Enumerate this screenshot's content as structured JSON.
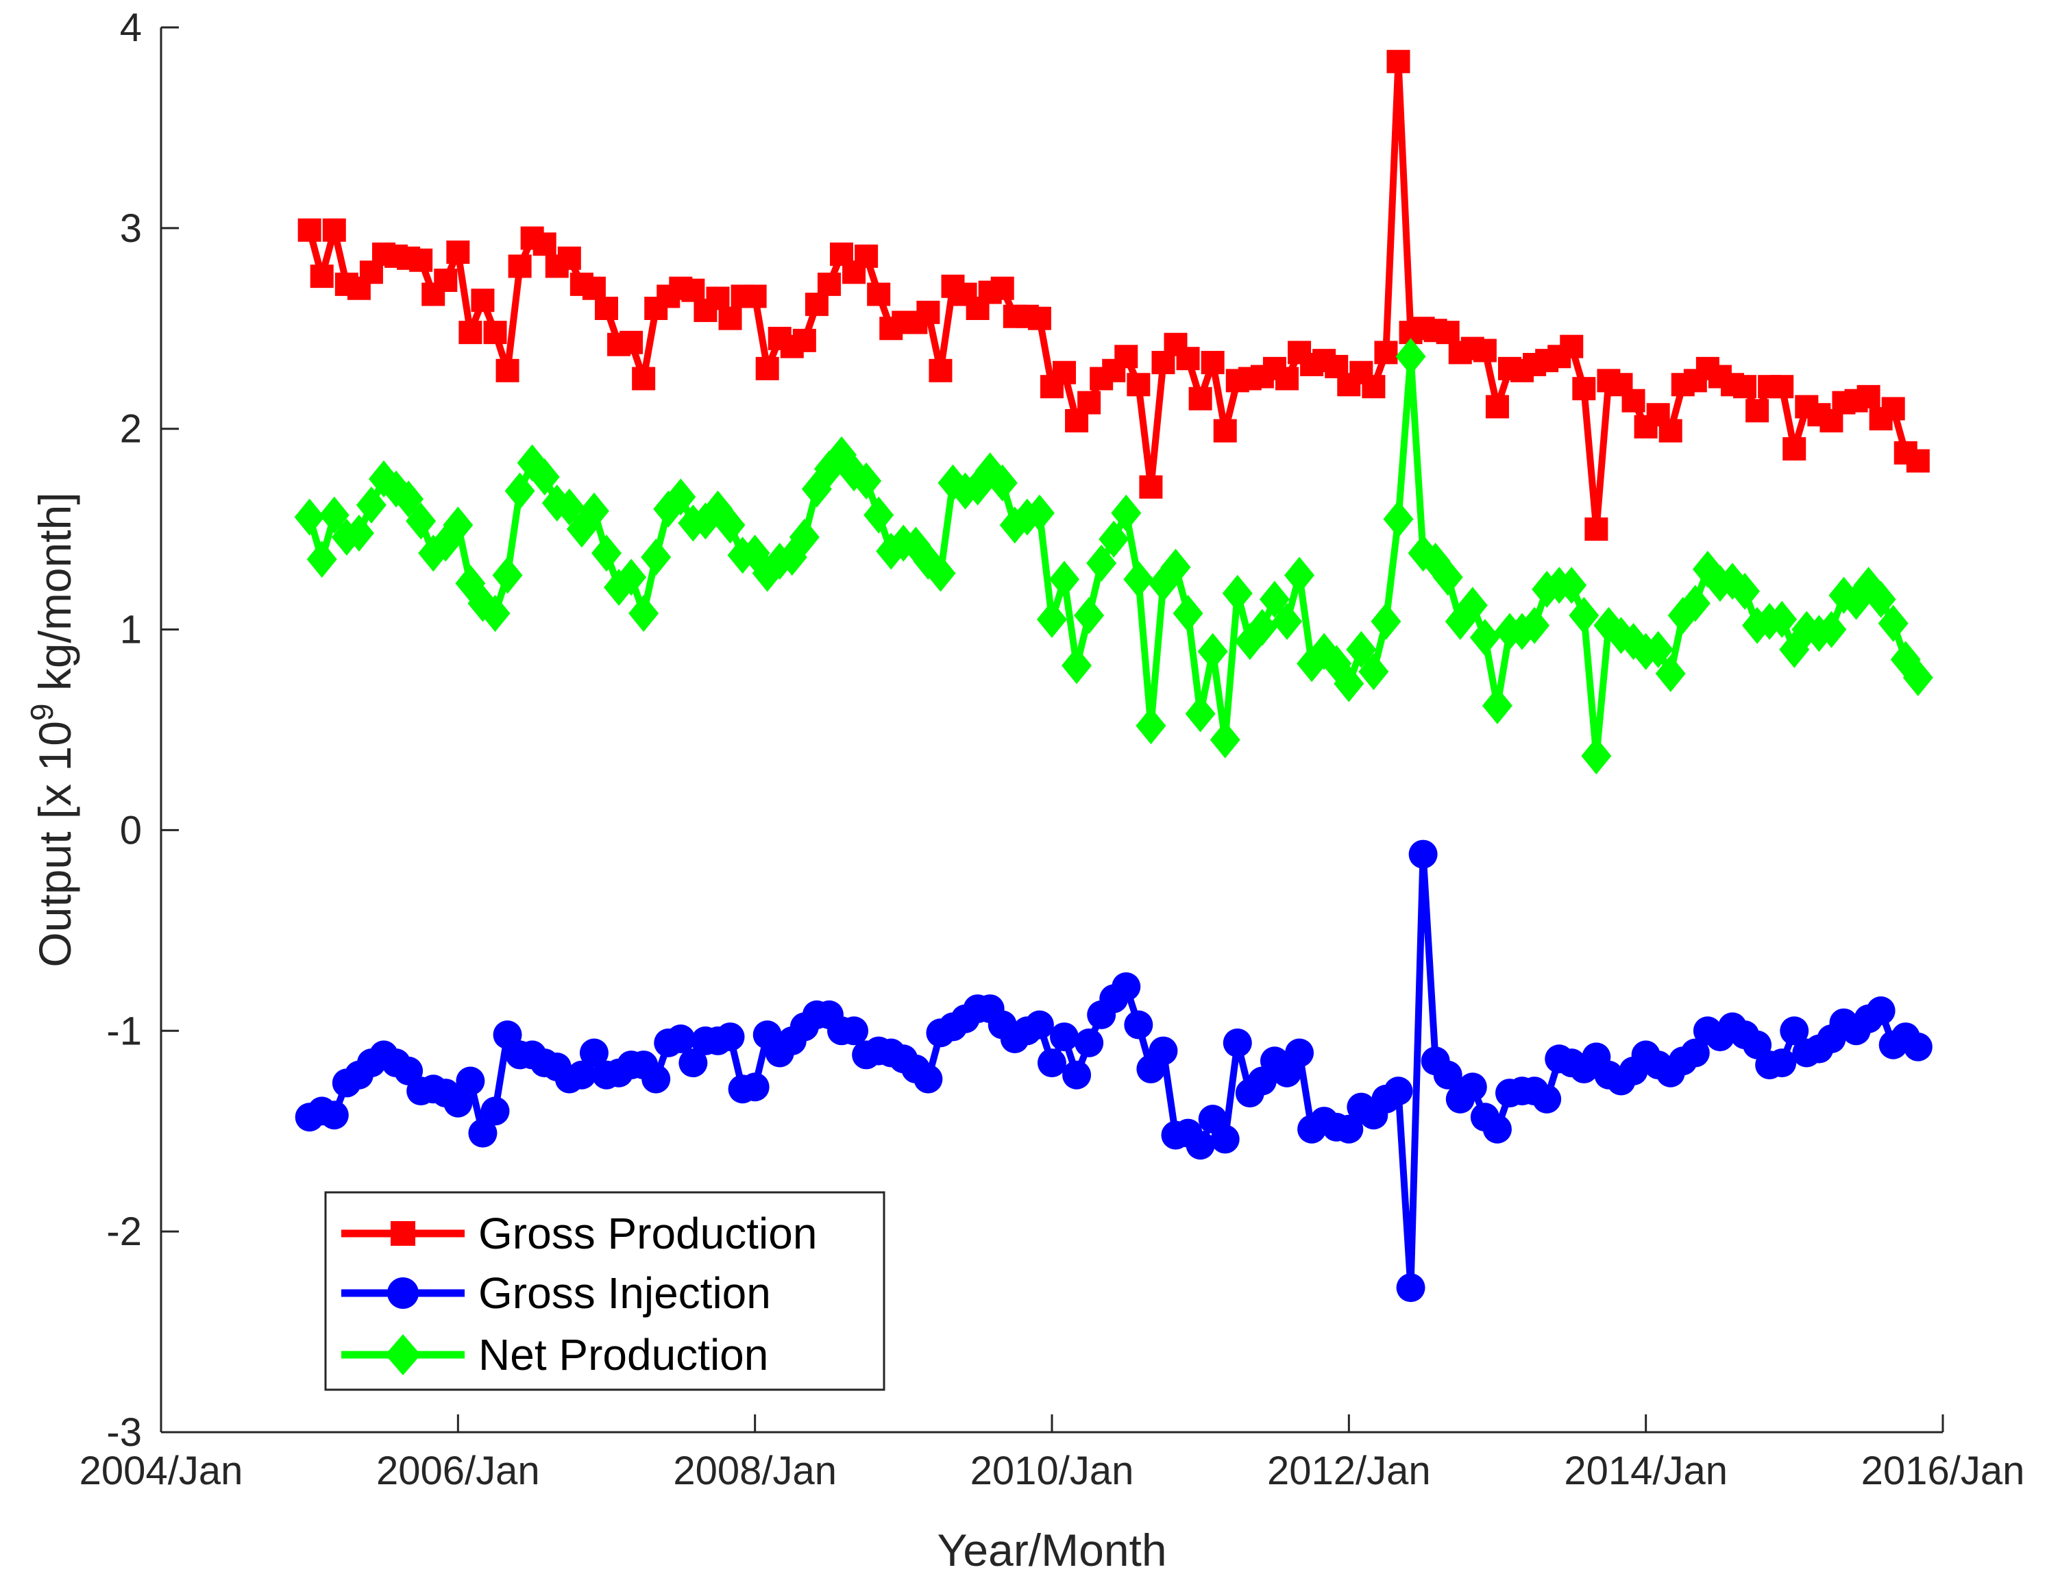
{
  "chart_data": {
    "type": "line",
    "title": "",
    "xlabel": "Year/Month",
    "ylabel_parts": {
      "prefix": "Output [x 10",
      "exponent": "9",
      "suffix": " kg/month]"
    },
    "xlim": [
      2004.0,
      2016.0
    ],
    "ylim": [
      -3,
      4
    ],
    "x_ticks": [
      {
        "value": 2004,
        "label": "2004/Jan"
      },
      {
        "value": 2006,
        "label": "2006/Jan"
      },
      {
        "value": 2008,
        "label": "2008/Jan"
      },
      {
        "value": 2010,
        "label": "2010/Jan"
      },
      {
        "value": 2012,
        "label": "2012/Jan"
      },
      {
        "value": 2014,
        "label": "2014/Jan"
      },
      {
        "value": 2016,
        "label": "2016/Jan"
      }
    ],
    "y_ticks": [
      {
        "value": -3,
        "label": "-3"
      },
      {
        "value": -2,
        "label": "-2"
      },
      {
        "value": -1,
        "label": "-1"
      },
      {
        "value": 0,
        "label": "0"
      },
      {
        "value": 1,
        "label": "1"
      },
      {
        "value": 2,
        "label": "2"
      },
      {
        "value": 3,
        "label": "3"
      },
      {
        "value": 4,
        "label": "4"
      }
    ],
    "x_start": 2005.0,
    "x_step": 0.08333,
    "grid": false,
    "legend_position": "bottom-left",
    "series": [
      {
        "name": "Gross Production",
        "color": "#ff0000",
        "marker": "square",
        "values": [
          2.99,
          2.76,
          2.99,
          2.72,
          2.7,
          2.78,
          2.87,
          2.86,
          2.85,
          2.84,
          2.67,
          2.74,
          2.88,
          2.48,
          2.64,
          2.48,
          2.29,
          2.81,
          2.95,
          2.92,
          2.81,
          2.85,
          2.72,
          2.7,
          2.6,
          2.42,
          2.43,
          2.25,
          2.6,
          2.66,
          2.7,
          2.69,
          2.59,
          2.65,
          2.55,
          2.66,
          2.66,
          2.3,
          2.45,
          2.41,
          2.44,
          2.62,
          2.72,
          2.87,
          2.78,
          2.86,
          2.67,
          2.5,
          2.53,
          2.53,
          2.58,
          2.29,
          2.71,
          2.67,
          2.6,
          2.68,
          2.7,
          2.56,
          2.56,
          2.55,
          2.21,
          2.28,
          2.04,
          2.13,
          2.25,
          2.29,
          2.36,
          2.22,
          1.71,
          2.33,
          2.42,
          2.35,
          2.15,
          2.33,
          1.99,
          2.24,
          2.25,
          2.26,
          2.3,
          2.25,
          2.38,
          2.32,
          2.34,
          2.31,
          2.22,
          2.28,
          2.21,
          2.38,
          3.83,
          2.48,
          2.5,
          2.49,
          2.48,
          2.38,
          2.4,
          2.39,
          2.11,
          2.3,
          2.29,
          2.32,
          2.34,
          2.36,
          2.41,
          2.2,
          1.5,
          2.24,
          2.22,
          2.14,
          2.01,
          2.07,
          1.99,
          2.22,
          2.24,
          2.3,
          2.26,
          2.22,
          2.21,
          2.09,
          2.21,
          2.21,
          1.9,
          2.11,
          2.07,
          2.04,
          2.13,
          2.14,
          2.16,
          2.05,
          2.1,
          1.88,
          1.84
        ]
      },
      {
        "name": "Gross Injection",
        "color": "#0000ff",
        "marker": "circle",
        "values": [
          -1.43,
          -1.4,
          -1.42,
          -1.26,
          -1.22,
          -1.16,
          -1.12,
          -1.16,
          -1.2,
          -1.3,
          -1.29,
          -1.31,
          -1.36,
          -1.25,
          -1.51,
          -1.4,
          -1.02,
          -1.12,
          -1.12,
          -1.16,
          -1.18,
          -1.24,
          -1.22,
          -1.11,
          -1.22,
          -1.21,
          -1.17,
          -1.17,
          -1.24,
          -1.06,
          -1.04,
          -1.16,
          -1.05,
          -1.05,
          -1.03,
          -1.29,
          -1.28,
          -1.02,
          -1.11,
          -1.05,
          -0.98,
          -0.92,
          -0.92,
          -1.0,
          -1.0,
          -1.12,
          -1.1,
          -1.11,
          -1.14,
          -1.19,
          -1.24,
          -1.01,
          -0.98,
          -0.94,
          -0.89,
          -0.89,
          -0.97,
          -1.04,
          -1.0,
          -0.97,
          -1.16,
          -1.03,
          -1.22,
          -1.06,
          -0.92,
          -0.84,
          -0.78,
          -0.97,
          -1.19,
          -1.1,
          -1.52,
          -1.51,
          -1.57,
          -1.44,
          -1.54,
          -1.06,
          -1.31,
          -1.25,
          -1.15,
          -1.21,
          -1.11,
          -1.49,
          -1.45,
          -1.48,
          -1.49,
          -1.38,
          -1.42,
          -1.34,
          -1.3,
          -2.28,
          -0.12,
          -1.15,
          -1.22,
          -1.34,
          -1.28,
          -1.43,
          -1.49,
          -1.31,
          -1.3,
          -1.3,
          -1.34,
          -1.14,
          -1.16,
          -1.19,
          -1.13,
          -1.22,
          -1.25,
          -1.2,
          -1.12,
          -1.17,
          -1.21,
          -1.15,
          -1.11,
          -1.0,
          -1.03,
          -0.98,
          -1.02,
          -1.07,
          -1.17,
          -1.16,
          -1.0,
          -1.11,
          -1.09,
          -1.04,
          -0.96,
          -1.0,
          -0.94,
          -0.9,
          -1.07,
          -1.03,
          -1.08
        ]
      },
      {
        "name": "Net Production",
        "color": "#00ff00",
        "marker": "diamond",
        "values": [
          1.56,
          1.35,
          1.57,
          1.46,
          1.48,
          1.62,
          1.75,
          1.7,
          1.65,
          1.54,
          1.38,
          1.43,
          1.52,
          1.23,
          1.13,
          1.08,
          1.27,
          1.69,
          1.83,
          1.76,
          1.63,
          1.61,
          1.5,
          1.59,
          1.38,
          1.21,
          1.26,
          1.08,
          1.36,
          1.6,
          1.66,
          1.53,
          1.54,
          1.6,
          1.52,
          1.37,
          1.38,
          1.28,
          1.34,
          1.36,
          1.46,
          1.7,
          1.8,
          1.87,
          1.78,
          1.74,
          1.57,
          1.39,
          1.43,
          1.42,
          1.34,
          1.28,
          1.73,
          1.69,
          1.71,
          1.79,
          1.73,
          1.52,
          1.56,
          1.58,
          1.05,
          1.25,
          0.82,
          1.07,
          1.33,
          1.45,
          1.58,
          1.25,
          0.52,
          1.23,
          1.31,
          1.08,
          0.58,
          0.89,
          0.45,
          1.18,
          0.94,
          1.01,
          1.15,
          1.04,
          1.27,
          0.83,
          0.89,
          0.83,
          0.73,
          0.9,
          0.79,
          1.04,
          1.55,
          2.36,
          1.38,
          1.34,
          1.26,
          1.04,
          1.12,
          0.96,
          0.62,
          0.99,
          0.99,
          1.02,
          1.2,
          1.22,
          1.22,
          1.07,
          0.37,
          1.02,
          0.97,
          0.94,
          0.89,
          0.9,
          0.78,
          1.07,
          1.13,
          1.3,
          1.23,
          1.24,
          1.19,
          1.02,
          1.04,
          1.05,
          0.9,
          1.0,
          0.98,
          1.0,
          1.17,
          1.14,
          1.22,
          1.15,
          1.03,
          0.85,
          0.76
        ]
      }
    ]
  }
}
